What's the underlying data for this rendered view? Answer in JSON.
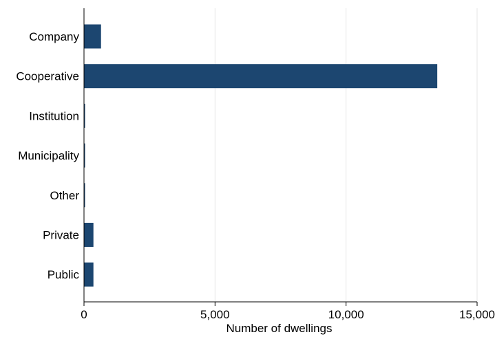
{
  "chart_data": {
    "type": "bar",
    "orientation": "horizontal",
    "categories": [
      "Company",
      "Cooperative",
      "Institution",
      "Municipality",
      "Other",
      "Private",
      "Public"
    ],
    "values": [
      650,
      13480,
      40,
      40,
      25,
      360,
      360
    ],
    "xlabel": "Number of dwellings",
    "ylabel": "",
    "xlim": [
      0,
      15000
    ],
    "xticks": [
      0,
      5000,
      10000,
      15000
    ],
    "xtick_labels": [
      "0",
      "5,000",
      "10,000",
      "15,000"
    ],
    "grid": "vertical",
    "bar_color": "#1c4670",
    "grid_color": "#e6e6e6"
  }
}
